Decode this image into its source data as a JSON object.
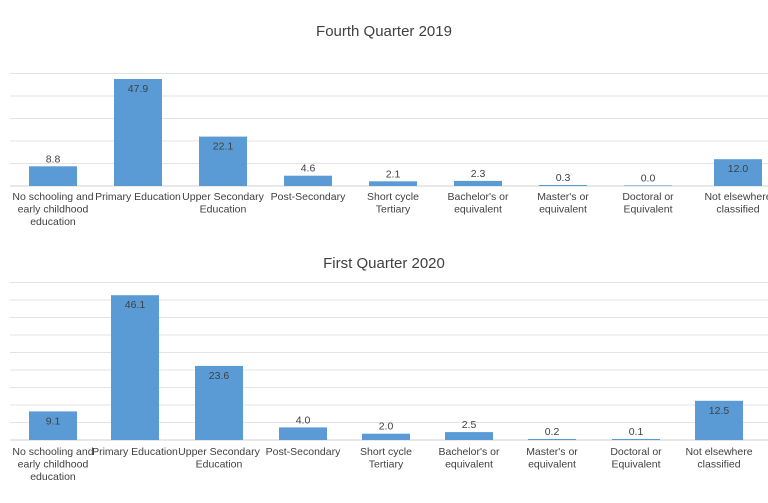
{
  "chart_data": [
    {
      "type": "bar",
      "title": "Fourth Quarter 2019",
      "categories": [
        [
          "No schooling and",
          "early childhood",
          "education"
        ],
        [
          "Primary Education"
        ],
        [
          "Upper Secondary",
          "Education"
        ],
        [
          "Post-Secondary"
        ],
        [
          "Short cycle",
          "Tertiary"
        ],
        [
          "Bachelor's or",
          "equivalent"
        ],
        [
          "Master's or",
          "equivalent"
        ],
        [
          "Doctoral or",
          "Equivalent"
        ],
        [
          "Not elsewhere",
          "classified"
        ]
      ],
      "values": [
        8.8,
        47.9,
        22.1,
        4.6,
        2.1,
        2.3,
        0.3,
        0.0,
        12.0
      ],
      "value_labels": [
        "8.8",
        "47.9",
        "22.1",
        "4.6",
        "2.1",
        "2.3",
        "0.3",
        "0.0",
        "12.0"
      ],
      "ylim": [
        0,
        60
      ],
      "grid": true,
      "bar_color": "#5b9bd5"
    },
    {
      "type": "bar",
      "title": "First Quarter 2020",
      "categories": [
        [
          "No schooling and",
          "early childhood",
          "education"
        ],
        [
          "Primary Education"
        ],
        [
          "Upper Secondary",
          "Education"
        ],
        [
          "Post-Secondary"
        ],
        [
          "Short cycle",
          "Tertiary"
        ],
        [
          "Bachelor's or",
          "equivalent"
        ],
        [
          "Master's or",
          "equivalent"
        ],
        [
          "Doctoral or",
          "Equivalent"
        ],
        [
          "Not elsewhere",
          "classified"
        ]
      ],
      "values": [
        9.1,
        46.1,
        23.6,
        4.0,
        2.0,
        2.5,
        0.2,
        0.1,
        12.5
      ],
      "value_labels": [
        "9.1",
        "46.1",
        "23.6",
        "4.0",
        "2.0",
        "2.5",
        "0.2",
        "0.1",
        "12.5"
      ],
      "ylim": [
        0,
        50
      ],
      "grid": true,
      "bar_color": "#5b9bd5"
    }
  ]
}
